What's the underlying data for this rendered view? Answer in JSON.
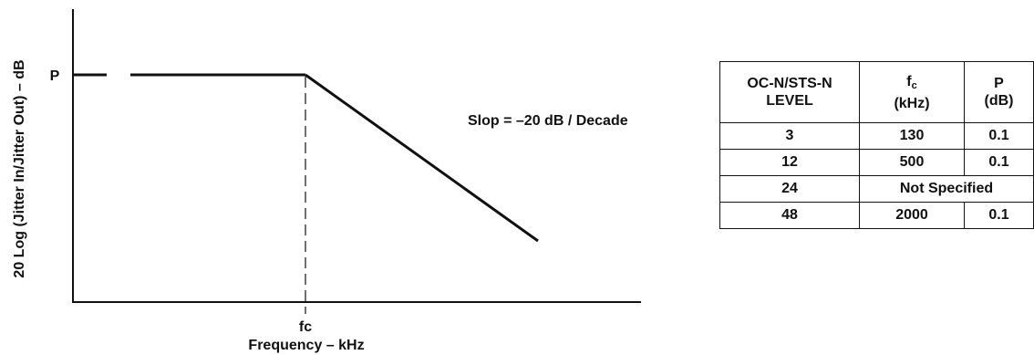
{
  "diagram": {
    "y_axis_label": "20 Log (Jitter In/Jitter Out) – dB",
    "x_axis_label": "Frequency – kHz",
    "p_marker": "P",
    "fc_marker": "fc",
    "slope_annotation": "Slop = –20 dB / Decade"
  },
  "table": {
    "headers": {
      "level": [
        "OC-N/STS-N",
        "LEVEL"
      ],
      "fc_main": "f",
      "fc_sub": "c",
      "fc_unit": "(kHz)",
      "p_main": "P",
      "p_unit": "(dB)"
    },
    "rows": [
      {
        "level": "3",
        "fc": "130",
        "p": "0.1"
      },
      {
        "level": "12",
        "fc": "500",
        "p": "0.1"
      },
      {
        "level": "24",
        "merged": "Not Specified"
      },
      {
        "level": "48",
        "fc": "2000",
        "p": "0.1"
      }
    ]
  }
}
